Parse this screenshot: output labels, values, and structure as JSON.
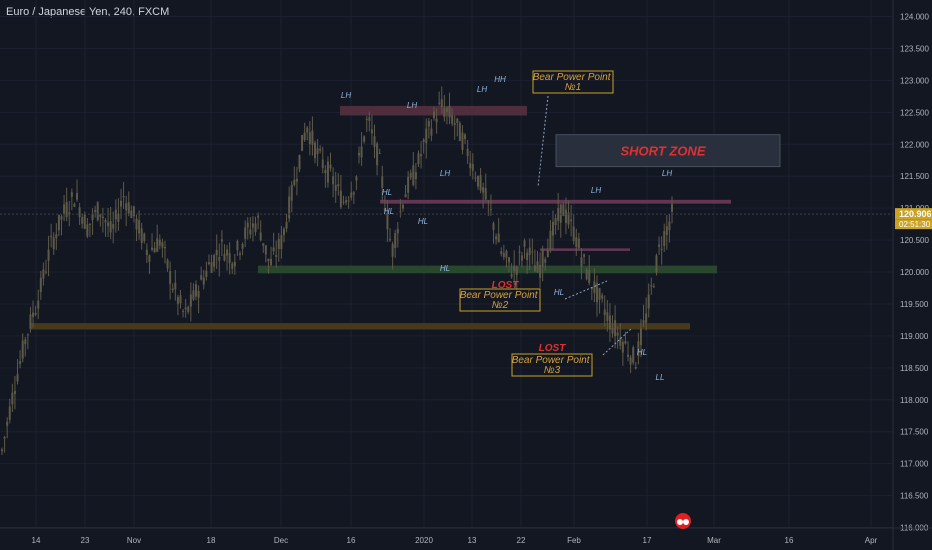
{
  "header": {
    "title": "Euro / Japanese Yen, 240, FXCM"
  },
  "colors": {
    "background": "#131722",
    "grid": "#1c2030",
    "candle": "#5e5a48",
    "axis_text": "#b2b5be",
    "price_tag": "#c9a227",
    "label_blue": "#8fb4e0",
    "gold": "#d8a23a",
    "red": "#e03030"
  },
  "chart_data": {
    "type": "candlestick",
    "title": "Euro / Japanese Yen, 240, FXCM",
    "symbol": "EURJPY",
    "interval": "240",
    "ylim": [
      115.9,
      124.2
    ],
    "y_ticks": [
      "124.000",
      "123.500",
      "123.000",
      "122.500",
      "122.000",
      "121.500",
      "121.000",
      "120.500",
      "120.000",
      "119.500",
      "119.000",
      "118.500",
      "118.000",
      "117.500",
      "117.000",
      "116.500",
      "116.000"
    ],
    "x_ticks": [
      "14",
      "23",
      "Nov",
      "18",
      "Dec",
      "16",
      "2020",
      "13",
      "22",
      "Feb",
      "17",
      "Mar",
      "16",
      "Apr"
    ],
    "current_price": "120.906",
    "countdown": "02:51:30",
    "price_path": [
      [
        "14",
        117.2
      ],
      [
        "14",
        118.2
      ],
      [
        "14",
        119.0
      ],
      [
        "14",
        119.6
      ],
      [
        "14",
        120.4
      ],
      [
        "23",
        120.9
      ],
      [
        "23",
        121.2
      ],
      [
        "23",
        120.7
      ],
      [
        "23",
        121.0
      ],
      [
        "23",
        120.6
      ],
      [
        "Nov",
        121.2
      ],
      [
        "Nov",
        120.8
      ],
      [
        "Nov",
        120.3
      ],
      [
        "Nov",
        120.5
      ],
      [
        "Nov",
        119.8
      ],
      [
        "18",
        119.3
      ],
      [
        "18",
        119.7
      ],
      [
        "18",
        120.1
      ],
      [
        "18",
        120.4
      ],
      [
        "Dec",
        120.2
      ],
      [
        "Dec",
        120.6
      ],
      [
        "Dec",
        120.8
      ],
      [
        "Dec",
        120.1
      ],
      [
        "16",
        120.5
      ],
      [
        "16",
        121.4
      ],
      [
        "16",
        122.3
      ],
      [
        "16",
        121.8
      ],
      [
        "16",
        121.5
      ],
      [
        "16",
        121.1
      ],
      [
        "2020",
        121.4
      ],
      [
        "2020",
        122.4
      ],
      [
        "2020",
        121.7
      ],
      [
        "2020",
        120.3
      ],
      [
        "2020",
        121.2
      ],
      [
        "13",
        121.6
      ],
      [
        "13",
        122.2
      ],
      [
        "13",
        122.6
      ],
      [
        "13",
        122.4
      ],
      [
        "22",
        122.0
      ],
      [
        "22",
        121.5
      ],
      [
        "22",
        121.0
      ],
      [
        "22",
        120.3
      ],
      [
        "22",
        120.0
      ],
      [
        "Feb",
        120.4
      ],
      [
        "Feb",
        120.0
      ],
      [
        "Feb",
        120.5
      ],
      [
        "Feb",
        121.0
      ],
      [
        "Feb",
        120.6
      ],
      [
        "17",
        120.0
      ],
      [
        "17",
        119.6
      ],
      [
        "17",
        119.2
      ],
      [
        "17",
        118.9
      ],
      [
        "17",
        118.6
      ],
      [
        "17",
        119.4
      ],
      [
        "17",
        120.4
      ],
      [
        "17",
        120.9
      ]
    ],
    "zones": [
      {
        "name": "resistance-top",
        "y": [
          122.45,
          122.6
        ]
      },
      {
        "name": "resistance-mid",
        "y": [
          121.07,
          121.13
        ]
      },
      {
        "name": "support-green",
        "y": [
          119.98,
          120.1
        ]
      },
      {
        "name": "support-orange",
        "y": [
          119.1,
          119.2
        ]
      },
      {
        "name": "short-zone",
        "y": [
          121.65,
          122.15
        ]
      }
    ],
    "annotations": {
      "swing_labels": [
        "LH",
        "LH",
        "LH",
        "HH",
        "HL",
        "HL",
        "HL",
        "LH",
        "LH",
        "HL",
        "HL",
        "LL"
      ],
      "zone_label": "SHORT ZONE",
      "level_labels": [
        "LH",
        "HL"
      ],
      "lost_labels": [
        "LOST",
        "LOST"
      ],
      "power_points": [
        "Bear Power Point\n№1",
        "Bear Power Point\n№2",
        "Bear Power Point\n№3"
      ]
    }
  }
}
